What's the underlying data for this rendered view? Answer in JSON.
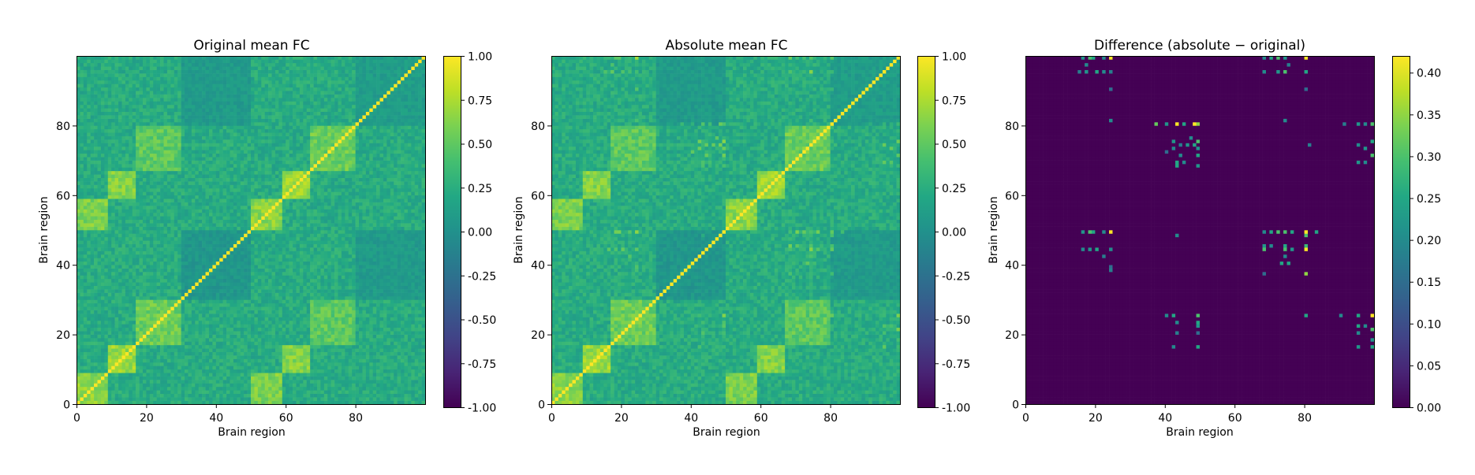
{
  "chart_data": [
    {
      "type": "heatmap",
      "title": "Original mean FC",
      "xlabel": "Brain region",
      "ylabel": "Brain region",
      "n": 100,
      "xlim": [
        0,
        99
      ],
      "ylim": [
        0,
        99
      ],
      "xticks": [
        0,
        20,
        40,
        60,
        80
      ],
      "yticks": [
        0,
        20,
        40,
        60,
        80
      ],
      "colorbar": {
        "range": [
          -1.0,
          1.0
        ],
        "ticks": [
          "1.00",
          "0.75",
          "0.50",
          "0.25",
          "0.00",
          "-0.25",
          "-0.50",
          "-0.75",
          "-1.00"
        ],
        "colormap": "viridis"
      },
      "structure": {
        "diagonal": 1.0,
        "background_range": [
          0.1,
          0.35
        ],
        "blocks": [
          {
            "rows": [
              0,
              8
            ],
            "cols": [
              0,
              8
            ],
            "value": 0.65
          },
          {
            "rows": [
              9,
              16
            ],
            "cols": [
              9,
              16
            ],
            "value": 0.7
          },
          {
            "rows": [
              17,
              29
            ],
            "cols": [
              17,
              29
            ],
            "value": 0.55
          },
          {
            "rows": [
              50,
              58
            ],
            "cols": [
              50,
              58
            ],
            "value": 0.65
          },
          {
            "rows": [
              59,
              66
            ],
            "cols": [
              59,
              66
            ],
            "value": 0.7
          },
          {
            "rows": [
              67,
              79
            ],
            "cols": [
              67,
              79
            ],
            "value": 0.55
          },
          {
            "rows": [
              0,
              8
            ],
            "cols": [
              50,
              58
            ],
            "value": 0.6
          },
          {
            "rows": [
              9,
              16
            ],
            "cols": [
              59,
              66
            ],
            "value": 0.62
          },
          {
            "rows": [
              17,
              29
            ],
            "cols": [
              67,
              79
            ],
            "value": 0.5
          },
          {
            "rows": [
              30,
              49
            ],
            "cols": [
              80,
              99
            ],
            "value": 0.45
          }
        ],
        "dark_blocks": [
          {
            "rows": [
              30,
              49
            ],
            "cols": [
              30,
              49
            ],
            "value": 0.05
          },
          {
            "rows": [
              80,
              99
            ],
            "cols": [
              30,
              49
            ],
            "value": 0.08
          },
          {
            "rows": [
              80,
              99
            ],
            "cols": [
              80,
              99
            ],
            "value": 0.1
          }
        ]
      }
    },
    {
      "type": "heatmap",
      "title": "Absolute mean FC",
      "xlabel": "Brain region",
      "ylabel": "Brain region",
      "n": 100,
      "xlim": [
        0,
        99
      ],
      "ylim": [
        0,
        99
      ],
      "xticks": [
        0,
        20,
        40,
        60,
        80
      ],
      "yticks": [
        0,
        20,
        40,
        60,
        80
      ],
      "colorbar": {
        "range": [
          -1.0,
          1.0
        ],
        "ticks": [
          "1.00",
          "0.75",
          "0.50",
          "0.25",
          "0.00",
          "-0.25",
          "-0.50",
          "-0.75",
          "-1.00"
        ],
        "colormap": "viridis"
      },
      "same_as_original_plus_difference": true
    },
    {
      "type": "heatmap",
      "title": "Difference (absolute − original)",
      "xlabel": "Brain region",
      "ylabel": "Brain region",
      "n": 100,
      "xlim": [
        0,
        99
      ],
      "ylim": [
        0,
        99
      ],
      "xticks": [
        0,
        20,
        40,
        60,
        80
      ],
      "yticks": [
        0,
        20,
        40,
        60,
        80
      ],
      "colorbar": {
        "range": [
          0.0,
          0.42
        ],
        "ticks": [
          "0.40",
          "0.35",
          "0.30",
          "0.25",
          "0.20",
          "0.15",
          "0.10",
          "0.05",
          "0.00"
        ],
        "colormap": "viridis"
      },
      "background": 0.0,
      "nonzero_cells": [
        [
          99,
          16,
          0.22
        ],
        [
          99,
          18,
          0.3
        ],
        [
          99,
          19,
          0.25
        ],
        [
          99,
          22,
          0.2
        ],
        [
          99,
          24,
          0.42
        ],
        [
          97,
          17,
          0.2
        ],
        [
          95,
          15,
          0.18
        ],
        [
          95,
          17,
          0.22
        ],
        [
          95,
          20,
          0.25
        ],
        [
          95,
          22,
          0.2
        ],
        [
          95,
          24,
          0.18
        ],
        [
          90,
          24,
          0.15
        ],
        [
          99,
          68,
          0.2
        ],
        [
          99,
          70,
          0.25
        ],
        [
          99,
          72,
          0.3
        ],
        [
          99,
          74,
          0.22
        ],
        [
          99,
          80,
          0.42
        ],
        [
          97,
          75,
          0.18
        ],
        [
          95,
          68,
          0.2
        ],
        [
          95,
          72,
          0.22
        ],
        [
          95,
          74,
          0.3
        ],
        [
          95,
          80,
          0.25
        ],
        [
          90,
          80,
          0.15
        ],
        [
          81,
          24,
          0.2
        ],
        [
          81,
          74,
          0.2
        ],
        [
          80,
          37,
          0.32
        ],
        [
          80,
          40,
          0.22
        ],
        [
          80,
          43,
          0.42
        ],
        [
          80,
          45,
          0.25
        ],
        [
          80,
          48,
          0.42
        ],
        [
          80,
          49,
          0.35
        ],
        [
          80,
          91,
          0.18
        ],
        [
          80,
          95,
          0.22
        ],
        [
          80,
          97,
          0.2
        ],
        [
          80,
          99,
          0.3
        ],
        [
          76,
          47,
          0.2
        ],
        [
          75,
          42,
          0.22
        ],
        [
          75,
          49,
          0.3
        ],
        [
          74,
          44,
          0.18
        ],
        [
          74,
          46,
          0.22
        ],
        [
          74,
          48,
          0.25
        ],
        [
          73,
          42,
          0.2
        ],
        [
          73,
          49,
          0.22
        ],
        [
          72,
          40,
          0.15
        ],
        [
          71,
          44,
          0.2
        ],
        [
          71,
          49,
          0.25
        ],
        [
          69,
          43,
          0.25
        ],
        [
          69,
          45,
          0.2
        ],
        [
          68,
          43,
          0.25
        ],
        [
          68,
          49,
          0.22
        ],
        [
          74,
          81,
          0.18
        ],
        [
          75,
          99,
          0.25
        ],
        [
          74,
          95,
          0.2
        ],
        [
          73,
          97,
          0.22
        ],
        [
          71,
          99,
          0.3
        ],
        [
          69,
          95,
          0.22
        ],
        [
          69,
          97,
          0.2
        ],
        [
          49,
          16,
          0.22
        ],
        [
          49,
          18,
          0.3
        ],
        [
          49,
          19,
          0.25
        ],
        [
          49,
          22,
          0.2
        ],
        [
          49,
          24,
          0.42
        ],
        [
          49,
          68,
          0.2
        ],
        [
          49,
          70,
          0.25
        ],
        [
          49,
          72,
          0.3
        ],
        [
          49,
          74,
          0.3
        ],
        [
          49,
          76,
          0.25
        ],
        [
          49,
          80,
          0.42
        ],
        [
          49,
          83,
          0.25
        ],
        [
          48,
          43,
          0.2
        ],
        [
          48,
          80,
          0.3
        ],
        [
          45,
          68,
          0.22
        ],
        [
          45,
          70,
          0.2
        ],
        [
          45,
          74,
          0.25
        ],
        [
          45,
          80,
          0.28
        ],
        [
          44,
          16,
          0.2
        ],
        [
          44,
          18,
          0.22
        ],
        [
          44,
          20,
          0.25
        ],
        [
          44,
          24,
          0.2
        ],
        [
          44,
          68,
          0.3
        ],
        [
          44,
          74,
          0.3
        ],
        [
          44,
          76,
          0.22
        ],
        [
          44,
          80,
          0.42
        ],
        [
          42,
          74,
          0.2
        ],
        [
          42,
          22,
          0.18
        ],
        [
          40,
          73,
          0.25
        ],
        [
          40,
          75,
          0.25
        ],
        [
          39,
          24,
          0.15
        ],
        [
          38,
          24,
          0.18
        ],
        [
          37,
          80,
          0.35
        ],
        [
          37,
          68,
          0.15
        ],
        [
          25,
          40,
          0.2
        ],
        [
          25,
          42,
          0.25
        ],
        [
          25,
          49,
          0.3
        ],
        [
          25,
          80,
          0.25
        ],
        [
          25,
          90,
          0.2
        ],
        [
          25,
          95,
          0.25
        ],
        [
          25,
          99,
          0.42
        ],
        [
          23,
          43,
          0.2
        ],
        [
          23,
          49,
          0.25
        ],
        [
          22,
          49,
          0.22
        ],
        [
          22,
          95,
          0.25
        ],
        [
          22,
          97,
          0.2
        ],
        [
          21,
          99,
          0.3
        ],
        [
          20,
          43,
          0.18
        ],
        [
          20,
          49,
          0.15
        ],
        [
          20,
          95,
          0.2
        ],
        [
          18,
          99,
          0.22
        ],
        [
          16,
          42,
          0.2
        ],
        [
          16,
          49,
          0.25
        ],
        [
          16,
          95,
          0.22
        ],
        [
          16,
          99,
          0.25
        ]
      ]
    }
  ]
}
